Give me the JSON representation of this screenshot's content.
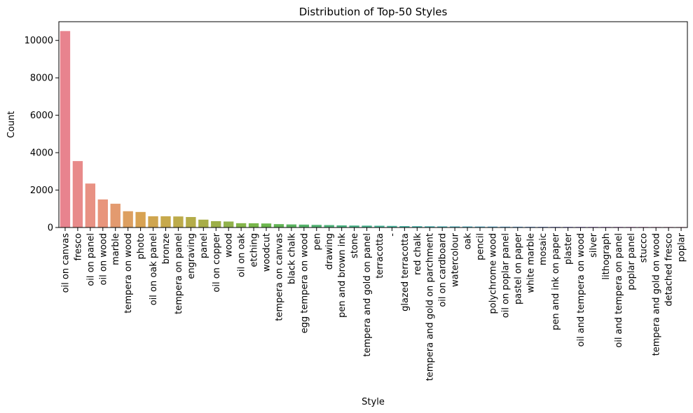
{
  "chart_data": {
    "type": "bar",
    "title": "Distribution of Top-50 Styles",
    "xlabel": "Style",
    "ylabel": "Count",
    "ylim": [
      0,
      11000
    ],
    "yticks": [
      0,
      2000,
      4000,
      6000,
      8000,
      10000
    ],
    "grid": false,
    "categories": [
      "oil on canvas",
      "fresco",
      "oil on panel",
      "oil on wood",
      "marble",
      "tempera on wood",
      "photo",
      "oil on oak panel",
      "bronze",
      "tempera on panel",
      "engraving",
      "panel",
      "oil on copper",
      "wood",
      "oil on oak",
      "etching",
      "woodcut",
      "tempera on canvas",
      "black chalk",
      "egg tempera on wood",
      "pen",
      "drawing",
      "pen and brown ink",
      "stone",
      "tempera and gold on panel",
      "terracotta",
      "-",
      "glazed terracotta",
      "red chalk",
      "tempera and gold on parchment",
      "oil on cardboard",
      "watercolour",
      "oak",
      "pencil",
      "polychrome wood",
      "oil on poplar panel",
      "pastel on paper",
      "white marble",
      "mosaic",
      "pen and ink on paper",
      "plaster",
      "oil and tempera on wood",
      "silver",
      "lithograph",
      "oil and tempera on panel",
      "poplar panel",
      "stucco",
      "tempera and gold on wood",
      "detached fresco",
      "poplar"
    ],
    "values": [
      10500,
      3550,
      2350,
      1500,
      1270,
      870,
      830,
      600,
      600,
      590,
      560,
      420,
      340,
      320,
      230,
      225,
      215,
      180,
      165,
      155,
      140,
      130,
      115,
      105,
      100,
      95,
      85,
      75,
      70,
      65,
      60,
      58,
      55,
      52,
      50,
      45,
      42,
      40,
      38,
      36,
      35,
      34,
      33,
      32,
      31,
      30,
      29,
      28,
      27,
      26
    ],
    "colors": [
      "#e8838e",
      "#e88a8a",
      "#e89183",
      "#e8957c",
      "#e39a6f",
      "#dd9f60",
      "#d8a252",
      "#cfa54f",
      "#c7a94c",
      "#bdab4a",
      "#b4ac48",
      "#a8ad47",
      "#9daf48",
      "#91b24b",
      "#84b54b",
      "#78b74b",
      "#6cb74d",
      "#62b455",
      "#5bb360",
      "#55b36a",
      "#52b373",
      "#4fb37b",
      "#4db382",
      "#4bb48a",
      "#4ab490",
      "#4ab598",
      "#4ab69f",
      "#4ab6a6",
      "#4bb6ad",
      "#4cb6b4",
      "#4db6ba",
      "#4fb5c0",
      "#52b4c7",
      "#56b2ce",
      "#5bb0d6",
      "#62aedd",
      "#6cabe3",
      "#79a7e8",
      "#87a2ec",
      "#959df0",
      "#a398f2",
      "#b092f3",
      "#bd8cf2",
      "#c987f0",
      "#d481ec",
      "#de7fe3",
      "#e47dd8",
      "#e87ecc",
      "#ea7fbf",
      "#eb81b1"
    ]
  }
}
